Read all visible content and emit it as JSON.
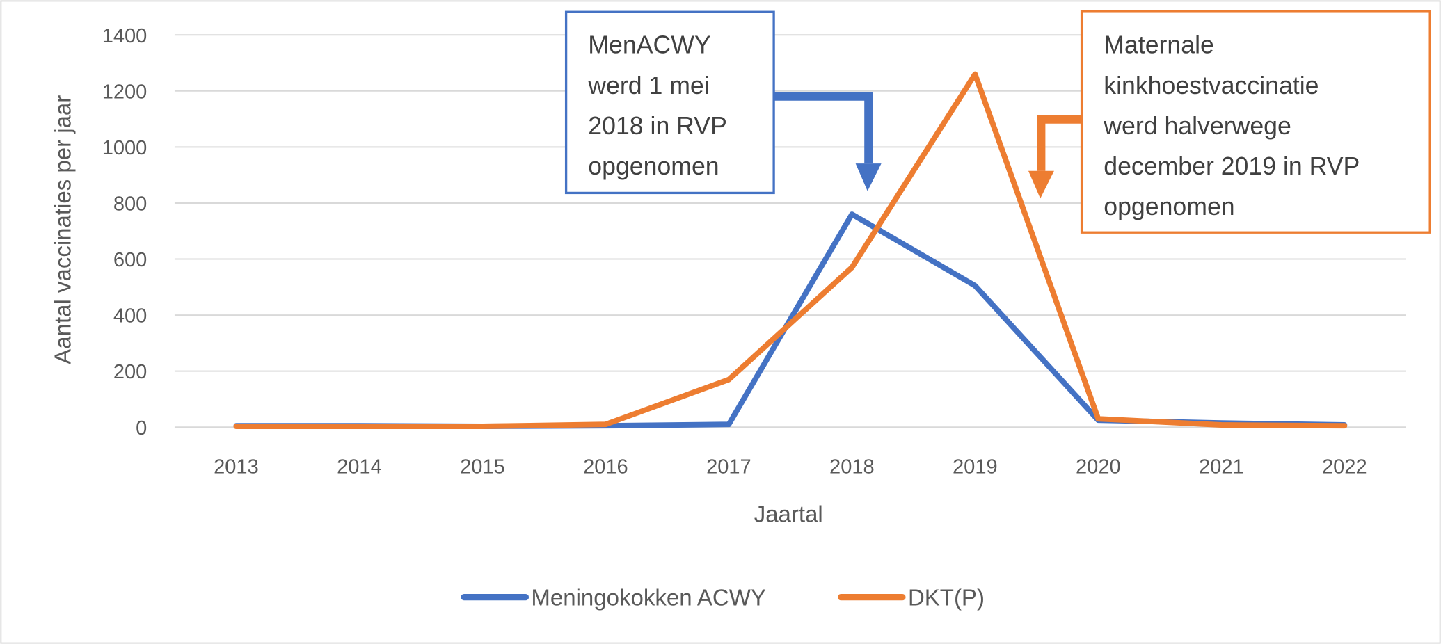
{
  "chart_data": {
    "type": "line",
    "title": "",
    "xlabel": "Jaartal",
    "ylabel": "Aantal vaccinaties per jaar",
    "ylim": [
      0,
      1400
    ],
    "yticks": [
      "0",
      "200",
      "400",
      "600",
      "800",
      "1000",
      "1200",
      "1400"
    ],
    "grid": true,
    "legend_placement": "bottom",
    "categories": [
      "2013",
      "2014",
      "2015",
      "2016",
      "2017",
      "2018",
      "2019",
      "2020",
      "2021",
      "2022"
    ],
    "series": [
      {
        "name": "Meningokokken ACWY",
        "color": "#4472C4",
        "values": [
          5,
          5,
          3,
          5,
          10,
          760,
          505,
          25,
          15,
          8
        ]
      },
      {
        "name": "DKT(P)",
        "color": "#ED7D31",
        "values": [
          3,
          3,
          3,
          10,
          170,
          570,
          1260,
          30,
          8,
          5
        ]
      }
    ],
    "annotations": [
      {
        "lines": [
          "MenACWY",
          "werd 1 mei",
          "2018 in RVP",
          "opgenomen"
        ],
        "color": "#4472C4",
        "points_to": "2018"
      },
      {
        "lines": [
          "Maternale",
          "kinkhoestvaccinatie",
          "werd halverwege",
          "december 2019 in RVP",
          "opgenomen"
        ],
        "color": "#ED7D31",
        "points_to": "2019.5"
      }
    ]
  }
}
